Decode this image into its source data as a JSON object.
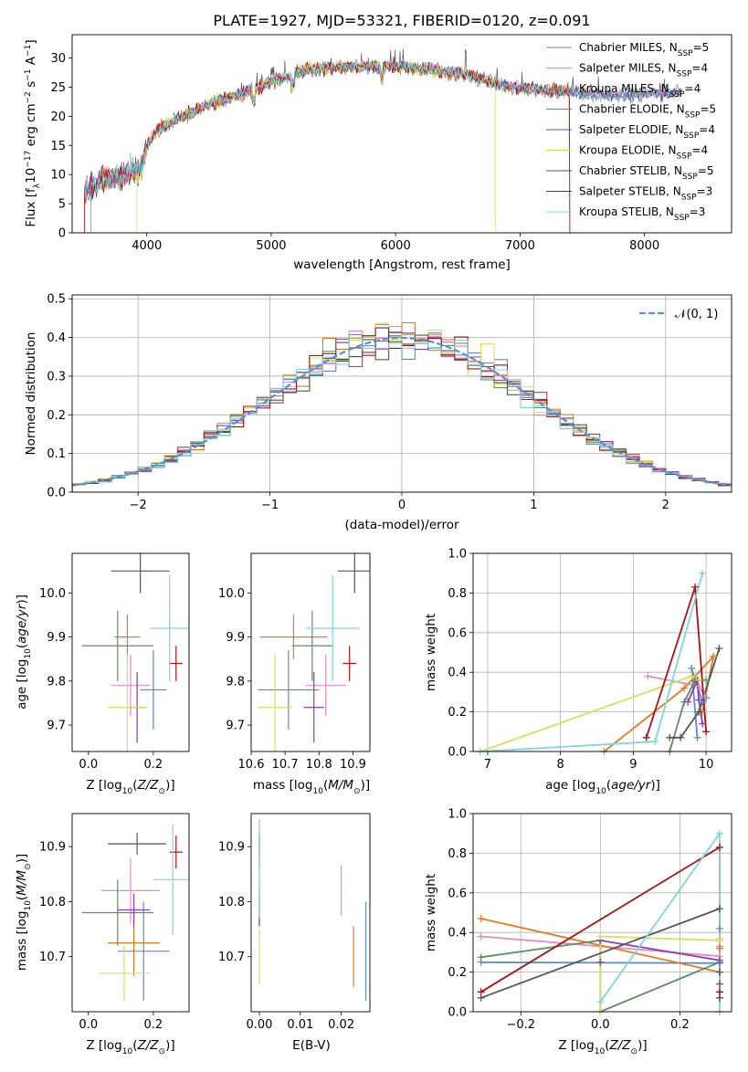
{
  "title": "PLATE=1927, MJD=53321, FIBERID=0120, z=0.091",
  "models": [
    {
      "label": "Chabrier MILES",
      "nssp": "5",
      "color": "#5b8ec8"
    },
    {
      "label": "Salpeter MILES",
      "nssp": "4",
      "color": "#e58bbe"
    },
    {
      "label": "Kroupa MILES",
      "nssp": "4",
      "color": "#e07b24"
    },
    {
      "label": "Chabrier ELODIE",
      "nssp": "5",
      "color": "#5e8f5e"
    },
    {
      "label": "Salpeter ELODIE",
      "nssp": "4",
      "color": "#8a3cb0"
    },
    {
      "label": "Kroupa ELODIE",
      "nssp": "4",
      "color": "#d8e05a"
    },
    {
      "label": "Chabrier STELIB",
      "nssp": "5",
      "color": "#555555"
    },
    {
      "label": "Salpeter STELIB",
      "nssp": "3",
      "color": "#aa1111"
    },
    {
      "label": "Kroupa STELIB",
      "nssp": "3",
      "color": "#7fd6dc"
    }
  ],
  "chart_data": [
    {
      "id": "spectrum",
      "type": "line",
      "xlabel": "wavelength [Angstrom, rest frame]",
      "ylabel": "Flux [f_λ 10^-17 erg cm^-2 s^-1 A^-1]",
      "xlim": [
        3400,
        8700
      ],
      "ylim": [
        0,
        34
      ],
      "xticks": [
        "4000",
        "5000",
        "6000",
        "7000",
        "8000"
      ],
      "yticks": [
        "0",
        "5",
        "10",
        "15",
        "20",
        "25",
        "30"
      ],
      "continuum": {
        "x": [
          3500,
          3650,
          3800,
          3950,
          4000,
          4100,
          4300,
          4500,
          4800,
          5000,
          5300,
          5600,
          6000,
          6300,
          6600,
          6900,
          7200,
          7500,
          7800,
          8100,
          8300
        ],
        "y": [
          7,
          9,
          10,
          11,
          15,
          18,
          20,
          22,
          24,
          26,
          28,
          28.5,
          28.5,
          28,
          27,
          25,
          24.5,
          24,
          23.5,
          24,
          24
        ]
      },
      "legend": "upper right"
    },
    {
      "id": "residuals",
      "type": "histogram",
      "xlabel": "(data-model)/error",
      "ylabel": "Normed distribution",
      "xlim": [
        -2.5,
        2.5
      ],
      "ylim": [
        0,
        0.51
      ],
      "xticks": [
        "−2",
        "−1",
        "0",
        "1",
        "2"
      ],
      "yticks": [
        "0.0",
        "0.1",
        "0.2",
        "0.3",
        "0.4",
        "0.5"
      ],
      "bin_width": 0.1,
      "reference_curve": "N(0,1)",
      "legend": "upper right",
      "grid": true
    },
    {
      "id": "age_vs_Z",
      "type": "errorbar",
      "xlabel": "Z [log10(Z/Z⊙)]",
      "ylabel": "age  [log10(age/yr)]",
      "xlim": [
        -0.05,
        0.31
      ],
      "ylim": [
        9.64,
        10.09
      ],
      "xticks": [
        "0.0",
        "0.2"
      ],
      "yticks": [
        "9.7",
        "9.8",
        "9.9",
        "10.0"
      ],
      "points": [
        {
          "x": 0.2,
          "xerr": 0.04,
          "y": 9.78,
          "yerr": 0.09
        },
        {
          "x": 0.13,
          "xerr": 0.06,
          "y": 9.79,
          "yerr": 0.07
        },
        {
          "x": 0.12,
          "xerr": 0.04,
          "y": 9.9,
          "yerr": 0.05
        },
        {
          "x": 0.09,
          "xerr": 0.11,
          "y": 9.88,
          "yerr": 0.08
        },
        {
          "x": 0.15,
          "xerr": 0.03,
          "y": 9.74,
          "yerr": 0.08
        },
        {
          "x": 0.12,
          "xerr": 0.06,
          "y": 9.74,
          "yerr": 0.12
        },
        {
          "x": 0.16,
          "xerr": 0.09,
          "y": 10.05,
          "yerr": 0.05
        },
        {
          "x": 0.27,
          "xerr": 0.02,
          "y": 9.84,
          "yerr": 0.04
        },
        {
          "x": 0.25,
          "xerr": 0.06,
          "y": 9.92,
          "yerr": 0.12
        }
      ]
    },
    {
      "id": "age_vs_mass",
      "type": "errorbar",
      "xlabel": "mass [log10(M/M⊙)]",
      "ylabel": "",
      "xlim": [
        10.6,
        10.95
      ],
      "ylim": [
        9.64,
        10.09
      ],
      "xticks": [
        "10.6",
        "10.7",
        "10.8",
        "10.9"
      ],
      "yticks": [
        "9.7",
        "9.8",
        "9.9",
        "10.0"
      ],
      "points": [
        {
          "x": 10.71,
          "xerr": 0.09,
          "y": 9.78,
          "yerr": 0.09
        },
        {
          "x": 10.82,
          "xerr": 0.06,
          "y": 9.79,
          "yerr": 0.07
        },
        {
          "x": 10.725,
          "xerr": 0.1,
          "y": 9.9,
          "yerr": 0.05
        },
        {
          "x": 10.78,
          "xerr": 0.06,
          "y": 9.88,
          "yerr": 0.08
        },
        {
          "x": 10.785,
          "xerr": 0.03,
          "y": 9.74,
          "yerr": 0.08
        },
        {
          "x": 10.67,
          "xerr": 0.05,
          "y": 9.74,
          "yerr": 0.12
        },
        {
          "x": 10.905,
          "xerr": 0.05,
          "y": 10.05,
          "yerr": 0.05
        },
        {
          "x": 10.89,
          "xerr": 0.02,
          "y": 9.84,
          "yerr": 0.04
        },
        {
          "x": 10.84,
          "xerr": 0.08,
          "y": 9.92,
          "yerr": 0.12
        }
      ]
    },
    {
      "id": "weight_vs_age",
      "type": "line",
      "xlabel": "age  [log10(age/yr)]",
      "ylabel": "mass weight",
      "xlim": [
        6.8,
        10.35
      ],
      "ylim": [
        0,
        1.0
      ],
      "xticks": [
        "7",
        "8",
        "9",
        "10"
      ],
      "yticks": [
        "0.0",
        "0.2",
        "0.4",
        "0.6",
        "0.8",
        "1.0"
      ],
      "grid": true,
      "series": [
        {
          "x": [
            9.88,
            9.8,
            9.95,
            10.0
          ],
          "y": [
            0.07,
            0.42,
            0.25,
            0.27
          ]
        },
        {
          "x": [
            9.2,
            9.9,
            9.98
          ],
          "y": [
            0.38,
            0.33,
            0.28
          ]
        },
        {
          "x": [
            8.6,
            9.7,
            10.1,
            9.95
          ],
          "y": [
            0.0,
            0.32,
            0.48,
            0.2
          ]
        },
        {
          "x": [
            9.5,
            9.7,
            9.85,
            10.0
          ],
          "y": [
            0.0,
            0.25,
            0.36,
            0.36
          ]
        },
        {
          "x": [
            9.75,
            9.88,
            9.9,
            9.95
          ],
          "y": [
            0.25,
            0.36,
            0.26,
            0.14
          ]
        },
        {
          "x": [
            6.9,
            9.8,
            9.9
          ],
          "y": [
            0.0,
            0.38,
            0.36
          ]
        },
        {
          "x": [
            9.5,
            9.65,
            9.9,
            10.18
          ],
          "y": [
            0.07,
            0.07,
            0.2,
            0.52
          ]
        },
        {
          "x": [
            9.18,
            9.85,
            10.0
          ],
          "y": [
            0.07,
            0.83,
            0.1
          ]
        },
        {
          "x": [
            6.9,
            9.3,
            9.95
          ],
          "y": [
            0.0,
            0.05,
            0.9
          ]
        }
      ]
    },
    {
      "id": "mass_vs_Z",
      "type": "errorbar",
      "xlabel": "Z [log10(Z/Z⊙)]",
      "ylabel": "mass [log10(M/M⊙)]",
      "xlim": [
        -0.05,
        0.31
      ],
      "ylim": [
        10.6,
        10.96
      ],
      "xticks": [
        "0.0",
        "0.2"
      ],
      "yticks": [
        "10.7",
        "10.8",
        "10.9"
      ],
      "points": [
        {
          "x": 0.17,
          "xerr": 0.08,
          "y": 10.71,
          "yerr": 0.09
        },
        {
          "x": 0.13,
          "xerr": 0.09,
          "y": 10.82,
          "yerr": 0.06
        },
        {
          "x": 0.14,
          "xerr": 0.08,
          "y": 10.725,
          "yerr": 0.06
        },
        {
          "x": 0.09,
          "xerr": 0.11,
          "y": 10.78,
          "yerr": 0.06
        },
        {
          "x": 0.14,
          "xerr": 0.05,
          "y": 10.785,
          "yerr": 0.03
        },
        {
          "x": 0.11,
          "xerr": 0.08,
          "y": 10.67,
          "yerr": 0.05
        },
        {
          "x": 0.15,
          "xerr": 0.09,
          "y": 10.905,
          "yerr": 0.02
        },
        {
          "x": 0.27,
          "xerr": 0.02,
          "y": 10.89,
          "yerr": 0.03
        },
        {
          "x": 0.26,
          "xerr": 0.06,
          "y": 10.84,
          "yerr": 0.1
        }
      ]
    },
    {
      "id": "mass_vs_ebv",
      "type": "errorbar",
      "xlabel": "E(B-V)",
      "ylabel": "",
      "xlim": [
        -0.002,
        0.027
      ],
      "ylim": [
        10.6,
        10.96
      ],
      "xticks": [
        "0.00",
        "0.01",
        "0.02"
      ],
      "yticks": [
        "10.7",
        "10.8",
        "10.9"
      ],
      "points": [
        {
          "x": 0.026,
          "xerr": 0,
          "y": 10.71,
          "yerr": 0.09
        },
        {
          "x": 0.02,
          "xerr": 0,
          "y": 10.82,
          "yerr": 0.045
        },
        {
          "x": 0.023,
          "xerr": 0,
          "y": 10.7,
          "yerr": 0.055
        },
        {
          "x": 0.0,
          "xerr": 0,
          "y": 10.8,
          "yerr": 0.04
        },
        {
          "x": 0.0,
          "xerr": 0,
          "y": 10.785,
          "yerr": 0.03
        },
        {
          "x": 0.0,
          "xerr": 0,
          "y": 10.7,
          "yerr": 0.05
        },
        {
          "x": 0.0,
          "xerr": 0,
          "y": 10.905,
          "yerr": 0.02
        },
        {
          "x": 0.0,
          "xerr": 0,
          "y": 10.89,
          "yerr": 0.03
        },
        {
          "x": 0.0,
          "xerr": 0,
          "y": 10.86,
          "yerr": 0.09
        }
      ]
    },
    {
      "id": "weight_vs_Z",
      "type": "line",
      "xlabel": "Z [log10(Z/Z⊙)]",
      "ylabel": "mass weight",
      "xlim": [
        -0.32,
        0.33
      ],
      "ylim": [
        0,
        1.0
      ],
      "xticks": [
        "−0.2",
        "0.0",
        "0.2"
      ],
      "yticks": [
        "0.0",
        "0.2",
        "0.4",
        "0.6",
        "0.8",
        "1.0"
      ],
      "grid": true,
      "series": [
        {
          "x": [
            -0.3,
            0.3,
            0.3,
            0.3
          ],
          "y": [
            0.25,
            0.245,
            0.07,
            0.42
          ]
        },
        {
          "x": [
            -0.3,
            0.3,
            0.3
          ],
          "y": [
            0.38,
            0.28,
            0.33
          ]
        },
        {
          "x": [
            -0.3,
            0.3,
            0.3,
            0.3
          ],
          "y": [
            0.47,
            0.2,
            0.0,
            0.32
          ]
        },
        {
          "x": [
            -0.3,
            0.0,
            0.0,
            0.3,
            0.3
          ],
          "y": [
            0.275,
            0.36,
            0.0,
            0.25,
            0.36
          ]
        },
        {
          "x": [
            0.0,
            0.0,
            0.3,
            0.3
          ],
          "y": [
            0.25,
            0.36,
            0.26,
            0.14
          ]
        },
        {
          "x": [
            0.0,
            0.0,
            0.3,
            0.3
          ],
          "y": [
            0.0,
            0.38,
            0.36,
            0.37
          ]
        },
        {
          "x": [
            -0.3,
            0.3,
            0.3,
            0.3
          ],
          "y": [
            0.07,
            0.52,
            0.07,
            0.2
          ]
        },
        {
          "x": [
            -0.3,
            0.3,
            0.3
          ],
          "y": [
            0.1,
            0.83,
            0.1
          ]
        },
        {
          "x": [
            0.0,
            0.3,
            0.3
          ],
          "y": [
            0.05,
            0.9,
            0.0
          ]
        }
      ]
    }
  ],
  "labels": {
    "xlabel_wavelength": "wavelength [Angstrom, rest frame]",
    "xlabel_resid": "(data-model)/error",
    "ylabel_resid": "Normed distribution",
    "xlabel_ebv": "E(B-V)",
    "ylabel_weight": "mass weight",
    "normal_legend": "𝒩(0, 1)"
  }
}
